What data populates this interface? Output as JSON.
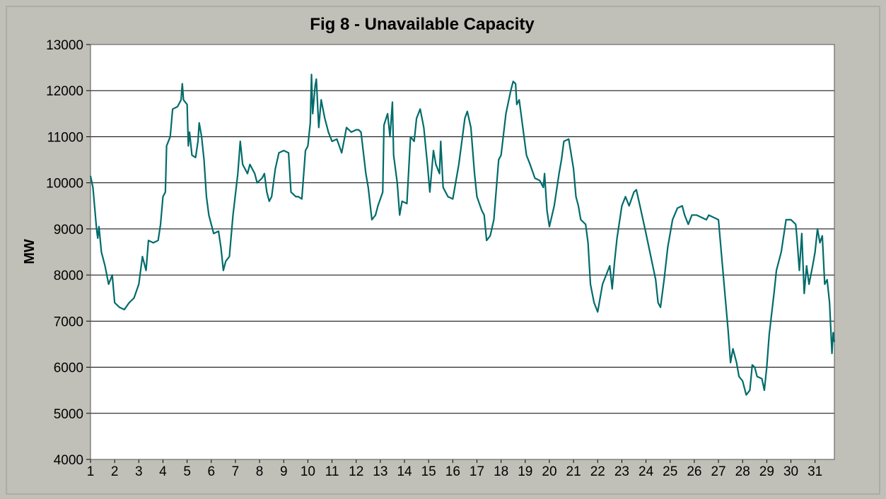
{
  "chart_data": {
    "type": "line",
    "title": "Fig 8 - Unavailable Capacity",
    "y_label": "MW",
    "xlim": [
      1,
      31.8
    ],
    "xticks": [
      1,
      2,
      3,
      4,
      5,
      6,
      7,
      8,
      9,
      10,
      11,
      12,
      13,
      14,
      15,
      16,
      17,
      18,
      19,
      20,
      21,
      22,
      23,
      24,
      25,
      26,
      27,
      28,
      29,
      30,
      31
    ],
    "ylim": [
      4000,
      13000
    ],
    "yticks": [
      4000,
      5000,
      6000,
      7000,
      8000,
      9000,
      10000,
      11000,
      12000,
      13000
    ],
    "grid": true,
    "x": [
      1.0,
      1.1,
      1.25,
      1.3,
      1.35,
      1.45,
      1.6,
      1.75,
      1.9,
      2.0,
      2.2,
      2.4,
      2.6,
      2.8,
      3.0,
      3.15,
      3.25,
      3.3,
      3.4,
      3.6,
      3.8,
      3.9,
      4.0,
      4.1,
      4.15,
      4.3,
      4.4,
      4.6,
      4.75,
      4.8,
      4.85,
      5.0,
      5.05,
      5.1,
      5.2,
      5.35,
      5.45,
      5.5,
      5.6,
      5.7,
      5.8,
      5.9,
      6.1,
      6.3,
      6.4,
      6.5,
      6.6,
      6.75,
      6.9,
      7.1,
      7.2,
      7.3,
      7.5,
      7.6,
      7.8,
      7.9,
      8.1,
      8.2,
      8.3,
      8.4,
      8.5,
      8.65,
      8.8,
      9.0,
      9.2,
      9.3,
      9.5,
      9.6,
      9.75,
      9.9,
      10.0,
      10.1,
      10.15,
      10.2,
      10.3,
      10.35,
      10.45,
      10.55,
      10.7,
      10.85,
      11.0,
      11.2,
      11.4,
      11.6,
      11.8,
      12.0,
      12.1,
      12.2,
      12.4,
      12.5,
      12.65,
      12.8,
      12.9,
      13.1,
      13.15,
      13.3,
      13.4,
      13.5,
      13.55,
      13.7,
      13.8,
      13.9,
      14.1,
      14.25,
      14.4,
      14.5,
      14.65,
      14.8,
      14.95,
      15.05,
      15.2,
      15.3,
      15.45,
      15.5,
      15.6,
      15.8,
      16.0,
      16.25,
      16.5,
      16.6,
      16.75,
      16.9,
      17.0,
      17.2,
      17.3,
      17.4,
      17.55,
      17.7,
      17.9,
      18.0,
      18.2,
      18.4,
      18.5,
      18.6,
      18.65,
      18.75,
      18.9,
      19.05,
      19.2,
      19.4,
      19.6,
      19.75,
      19.8,
      19.9,
      20.0,
      20.2,
      20.4,
      20.5,
      20.6,
      20.8,
      21.0,
      21.1,
      21.2,
      21.3,
      21.5,
      21.6,
      21.7,
      21.85,
      22.0,
      22.2,
      22.35,
      22.5,
      22.6,
      22.7,
      22.8,
      23.0,
      23.15,
      23.3,
      23.5,
      23.6,
      23.75,
      24.0,
      24.2,
      24.4,
      24.5,
      24.6,
      24.75,
      24.9,
      25.1,
      25.3,
      25.5,
      25.6,
      25.75,
      25.9,
      26.1,
      26.3,
      26.5,
      26.6,
      26.8,
      27.0,
      27.2,
      27.4,
      27.5,
      27.6,
      27.75,
      27.85,
      28.0,
      28.15,
      28.3,
      28.4,
      28.5,
      28.6,
      28.8,
      28.9,
      29.0,
      29.1,
      29.3,
      29.4,
      29.6,
      29.8,
      30.0,
      30.2,
      30.25,
      30.35,
      30.45,
      30.55,
      30.65,
      30.75,
      30.9,
      31.0,
      31.1,
      31.2,
      31.3,
      31.4,
      31.5,
      31.6,
      31.7,
      31.75,
      31.8
    ],
    "series": [
      {
        "name": "Unavailable Capacity",
        "color": "#006b6b",
        "values": [
          10150,
          9900,
          9000,
          8800,
          9050,
          8500,
          8200,
          7800,
          8000,
          7400,
          7300,
          7250,
          7400,
          7500,
          7800,
          8400,
          8200,
          8100,
          8750,
          8700,
          8750,
          9100,
          9700,
          9800,
          10800,
          11000,
          11600,
          11650,
          11800,
          12150,
          11800,
          11700,
          10800,
          11100,
          10600,
          10550,
          10900,
          11300,
          11000,
          10500,
          9700,
          9300,
          8900,
          8950,
          8600,
          8100,
          8300,
          8400,
          9300,
          10200,
          10900,
          10400,
          10200,
          10400,
          10200,
          10000,
          10100,
          10200,
          9800,
          9600,
          9700,
          10300,
          10650,
          10700,
          10650,
          9800,
          9700,
          9700,
          9650,
          10700,
          10800,
          11300,
          12350,
          11500,
          12100,
          12250,
          11200,
          11800,
          11400,
          11100,
          10900,
          10950,
          10650,
          11200,
          11100,
          11150,
          11150,
          11100,
          10200,
          9900,
          9200,
          9300,
          9500,
          9800,
          11250,
          11500,
          11000,
          11750,
          10600,
          10000,
          9300,
          9600,
          9550,
          11000,
          10900,
          11400,
          11600,
          11200,
          10400,
          9800,
          10700,
          10400,
          10200,
          10900,
          9900,
          9700,
          9650,
          10400,
          11400,
          11550,
          11200,
          10200,
          9700,
          9400,
          9300,
          8750,
          8850,
          9200,
          10500,
          10600,
          11500,
          12000,
          12200,
          12150,
          11700,
          11800,
          11200,
          10600,
          10400,
          10100,
          10050,
          9900,
          10200,
          9400,
          9050,
          9500,
          10200,
          10500,
          10900,
          10950,
          10300,
          9700,
          9500,
          9200,
          9100,
          8700,
          7800,
          7400,
          7200,
          7800,
          8000,
          8200,
          7700,
          8300,
          8800,
          9500,
          9700,
          9500,
          9800,
          9850,
          9500,
          8900,
          8400,
          7900,
          7400,
          7300,
          7900,
          8600,
          9200,
          9450,
          9500,
          9300,
          9100,
          9300,
          9300,
          9250,
          9200,
          9300,
          9250,
          9200,
          8000,
          6800,
          6100,
          6400,
          6100,
          5800,
          5700,
          5400,
          5500,
          6050,
          6000,
          5800,
          5750,
          5500,
          6000,
          6700,
          7600,
          8100,
          8500,
          9200,
          9200,
          9100,
          8800,
          8100,
          8900,
          7600,
          8200,
          7800,
          8200,
          8500,
          9000,
          8700,
          8850,
          7800,
          7900,
          7400,
          6300,
          6750,
          6550
        ]
      }
    ]
  }
}
